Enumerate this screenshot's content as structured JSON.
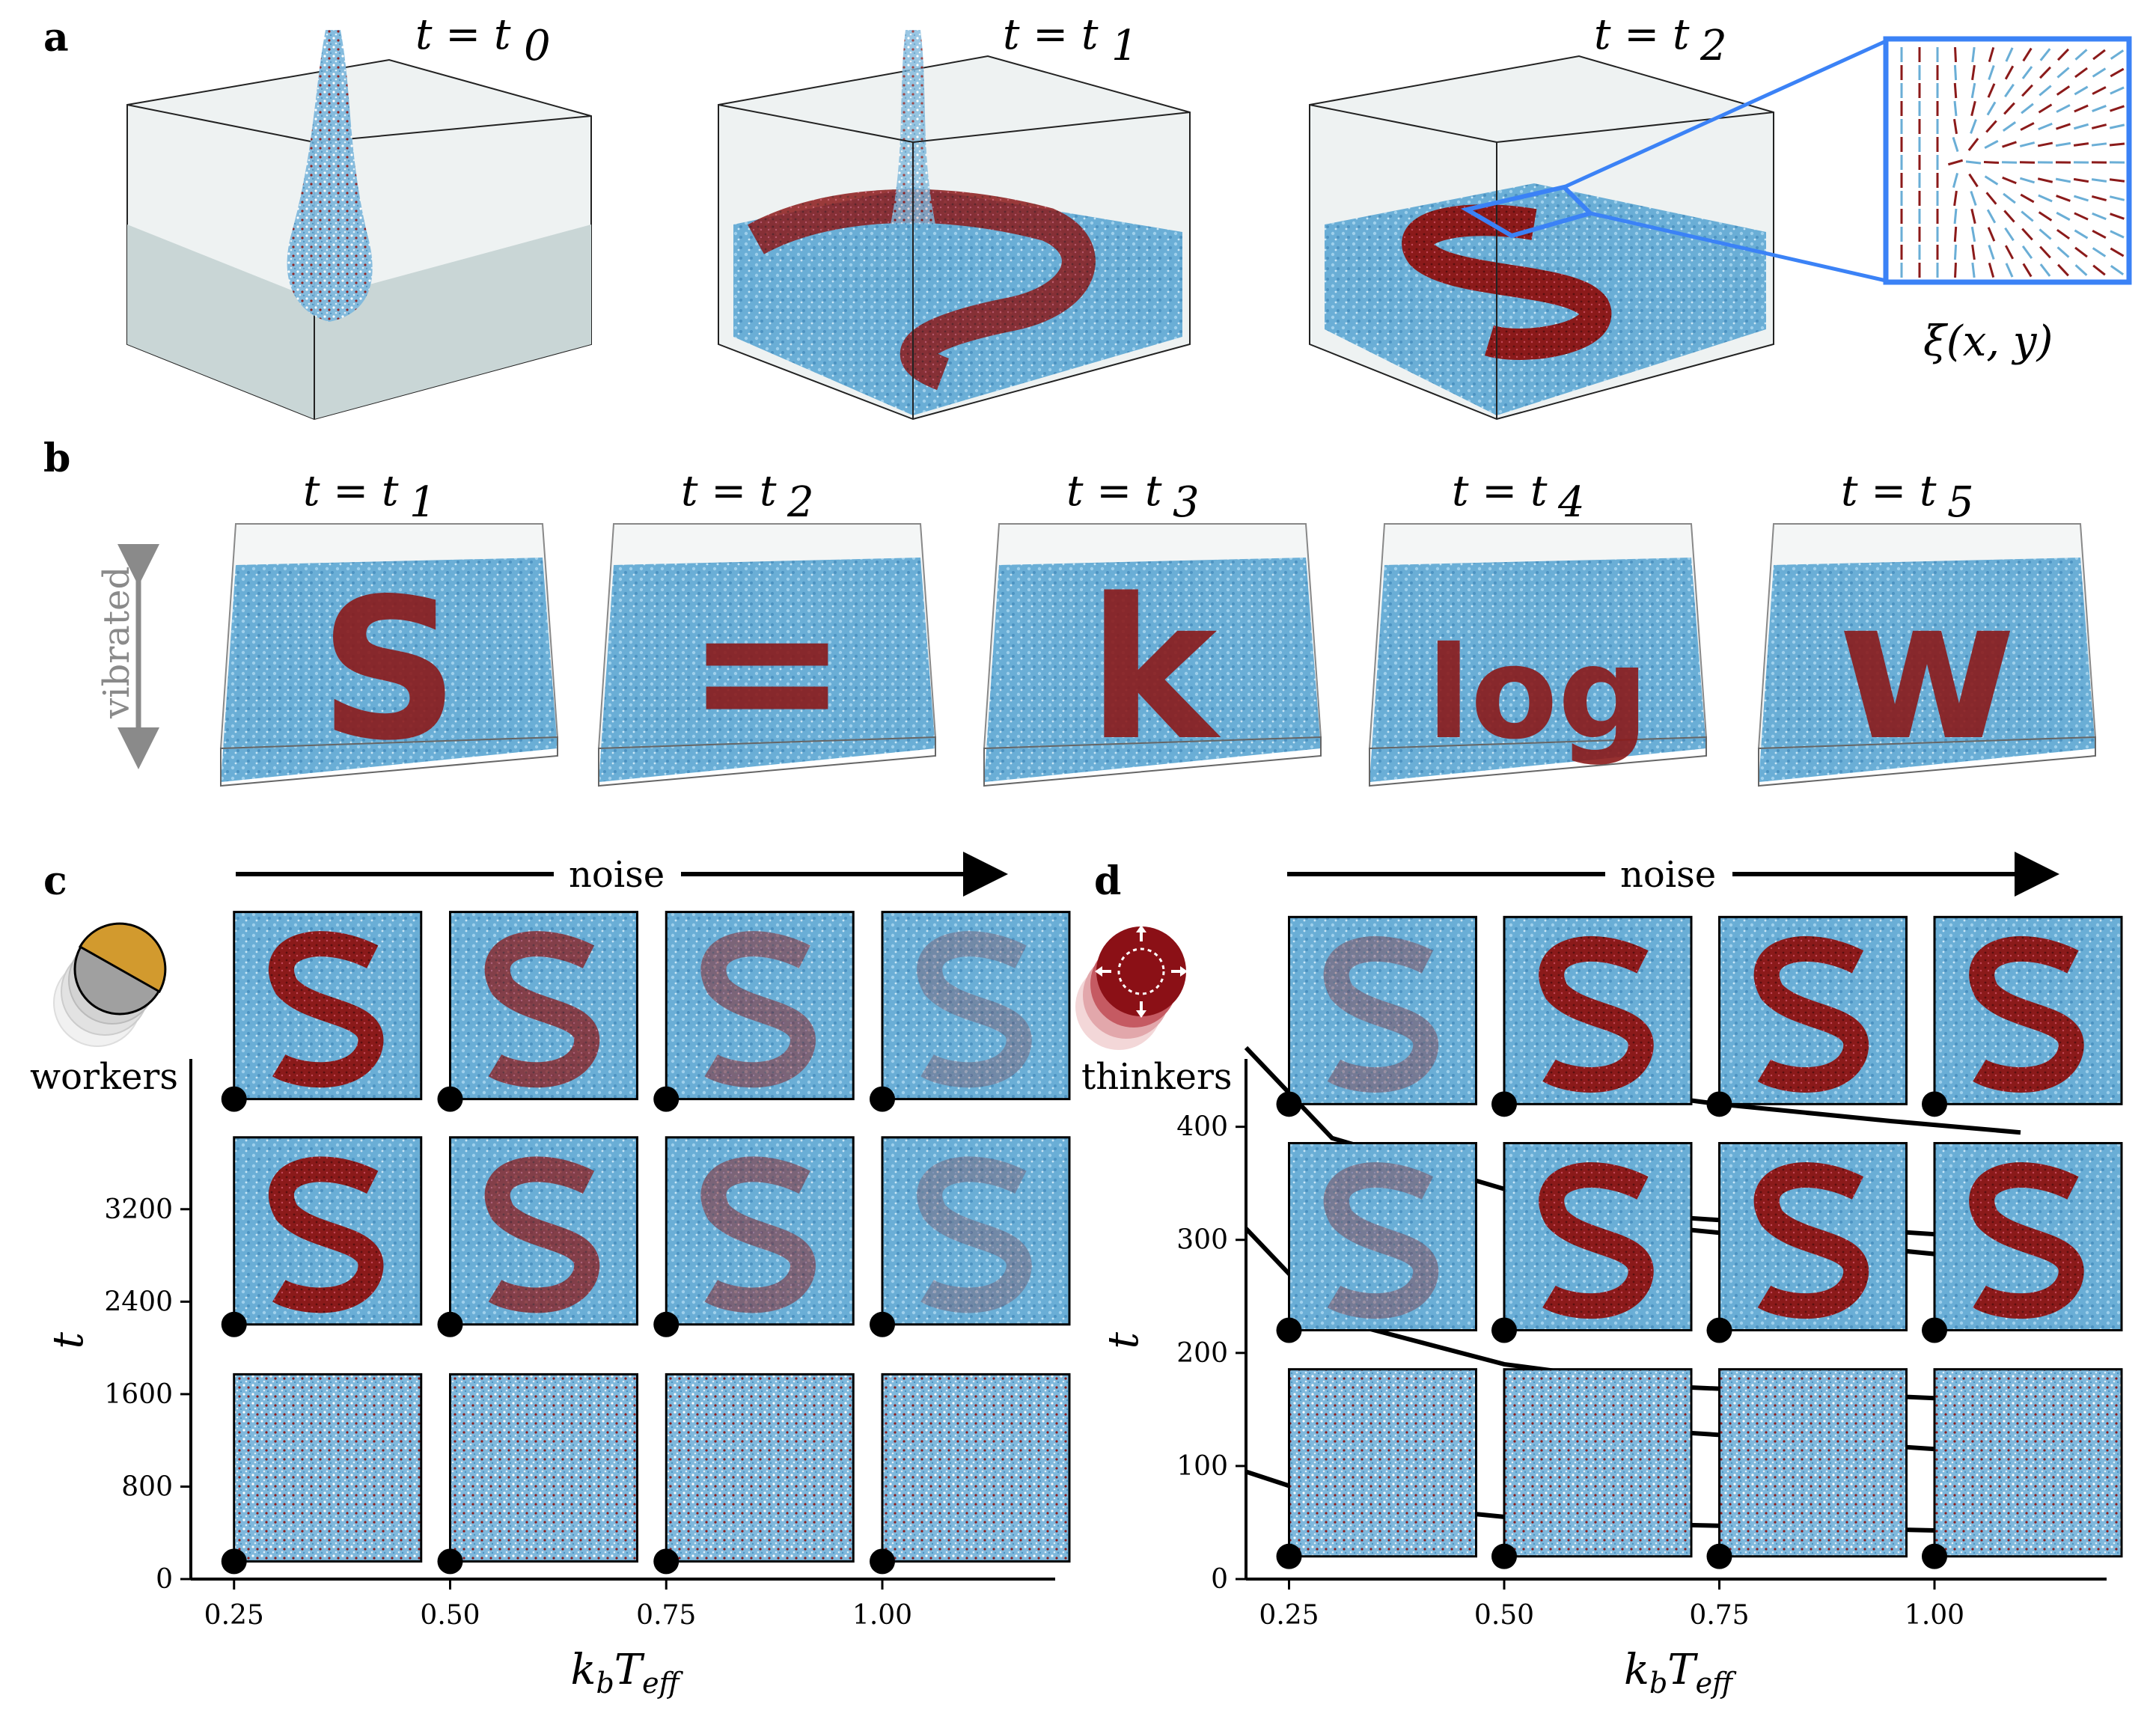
{
  "panels": {
    "a": {
      "letter": "a",
      "time_labels": [
        "t = t",
        "t = t",
        "t = t"
      ],
      "time_subscripts": [
        "0",
        "1",
        "2"
      ],
      "field_label": "ξ(x, y)"
    },
    "b": {
      "letter": "b",
      "side_label": "vibrated",
      "time_labels": [
        "t = t",
        "t = t",
        "t = t",
        "t = t",
        "t = t"
      ],
      "time_subscripts": [
        "1",
        "2",
        "3",
        "4",
        "5"
      ],
      "glyphs": [
        "S",
        "=",
        "k",
        "log",
        "w"
      ]
    },
    "c": {
      "letter": "c",
      "arrow_label": "noise",
      "agent_label": "workers",
      "ylabel": "t",
      "xlabel": "k",
      "xlabel_sub1": "b",
      "xlabel_main2": "T",
      "xlabel_sub2": "eff",
      "yticks": [
        "0",
        "800",
        "1600",
        "2400",
        "3200"
      ],
      "xticks": [
        "0.25",
        "0.50",
        "0.75",
        "1.00"
      ]
    },
    "d": {
      "letter": "d",
      "arrow_label": "noise",
      "agent_label": "thinkers",
      "ylabel": "t",
      "xlabel": "k",
      "xlabel_sub1": "b",
      "xlabel_main2": "T",
      "xlabel_sub2": "eff",
      "yticks": [
        "0",
        "100",
        "200",
        "300",
        "400"
      ],
      "xticks": [
        "0.25",
        "0.50",
        "0.75",
        "1.00"
      ]
    }
  },
  "colors": {
    "fluid": "#6aaed6",
    "particle_dark": "#8b1a1a",
    "highlight": "#3b82f6",
    "worker_gold": "#d29a2e",
    "worker_gray": "#a0a0a0",
    "thinker_red": "#8b1016"
  },
  "chart_data": [
    {
      "type": "scatter",
      "panel": "c",
      "xlabel": "k_b T_eff",
      "ylabel": "t",
      "x": [
        0.25,
        0.5,
        0.75,
        1.0,
        0.25,
        0.5,
        0.75,
        1.0,
        0.25,
        0.5,
        0.75,
        1.0
      ],
      "y": [
        250,
        250,
        250,
        250,
        2300,
        2300,
        2300,
        2300,
        4250,
        4250,
        4250,
        4250
      ],
      "ylim": [
        0,
        4500
      ],
      "xlim": [
        0.2,
        1.2
      ],
      "grid": false
    },
    {
      "type": "line",
      "panel": "d",
      "xlabel": "k_b T_eff",
      "ylabel": "t",
      "ylim": [
        0,
        460
      ],
      "xlim": [
        0.2,
        1.2
      ],
      "grid": false,
      "points": {
        "x": [
          0.25,
          0.5,
          0.75,
          1.0,
          0.25,
          0.5,
          0.75,
          1.0,
          0.25,
          0.5,
          0.75,
          1.0
        ],
        "y": [
          30,
          30,
          30,
          30,
          230,
          230,
          230,
          230,
          430,
          430,
          430,
          430
        ]
      },
      "series": [
        {
          "x": [
            0.2,
            0.3,
            0.5,
            0.7,
            1.0,
            1.2
          ],
          "y": [
            95,
            70,
            55,
            48,
            43,
            40
          ]
        },
        {
          "x": [
            0.2,
            0.3,
            0.5,
            0.7,
            1.0,
            1.2
          ],
          "y": [
            310,
            230,
            190,
            170,
            160,
            155
          ]
        },
        {
          "x": [
            0.2,
            0.3,
            0.5,
            0.7,
            1.0,
            1.2
          ],
          "y": [
            470,
            390,
            345,
            320,
            305,
            300
          ]
        },
        {
          "x": [
            0.5,
            0.7,
            0.9,
            1.1
          ],
          "y": [
            140,
            130,
            120,
            110
          ]
        },
        {
          "x": [
            0.5,
            0.7,
            0.9,
            1.1
          ],
          "y": [
            330,
            310,
            295,
            280
          ]
        },
        {
          "x": [
            0.55,
            0.75,
            0.95,
            1.1
          ],
          "y": [
            440,
            420,
            405,
            395
          ]
        }
      ]
    }
  ]
}
